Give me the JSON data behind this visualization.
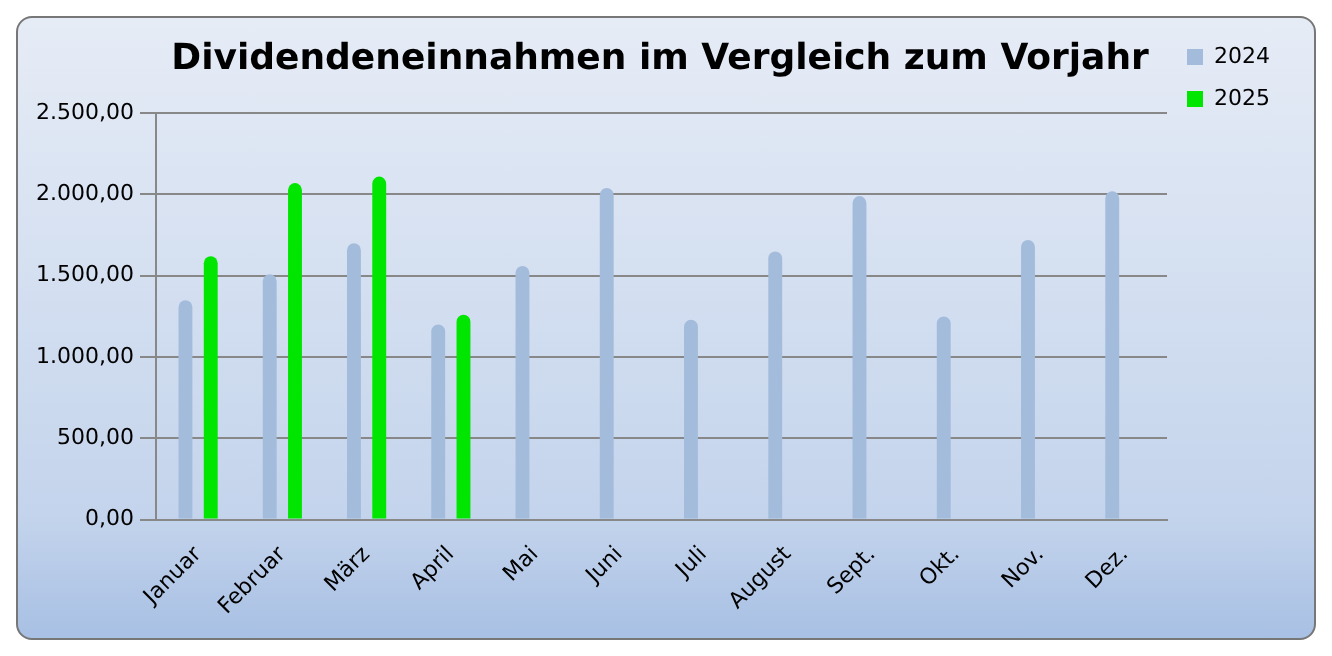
{
  "chart_data": {
    "type": "bar",
    "title": "Dividendeneinnahmen im Vergleich zum Vorjahr",
    "categories": [
      "Januar",
      "Februar",
      "März",
      "April",
      "Mai",
      "Juni",
      "Juli",
      "August",
      "Sept.",
      "Okt.",
      "Nov.",
      "Dez."
    ],
    "series": [
      {
        "name": "2024",
        "color": "#a4bcdc",
        "values": [
          1350,
          1510,
          1700,
          1200,
          1560,
          2040,
          1230,
          1650,
          1990,
          1250,
          1720,
          2020
        ]
      },
      {
        "name": "2025",
        "color": "#00e600",
        "values": [
          1620,
          2070,
          2110,
          1260,
          null,
          null,
          null,
          null,
          null,
          null,
          null,
          null
        ]
      }
    ],
    "ylim": [
      0,
      2500
    ],
    "yticks": [
      {
        "value": 0,
        "label": "0,00"
      },
      {
        "value": 500,
        "label": "500,00"
      },
      {
        "value": 1000,
        "label": "1.000,00"
      },
      {
        "value": 1500,
        "label": "1.500,00"
      },
      {
        "value": 2000,
        "label": "2.000,00"
      },
      {
        "value": 2500,
        "label": "2.500,00"
      }
    ],
    "grid": "y",
    "legend": "right"
  }
}
